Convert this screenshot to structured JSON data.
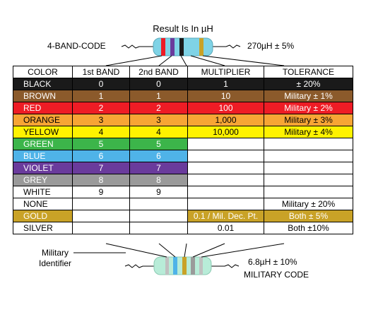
{
  "title": "Result Is In µH",
  "top_code_label": "4-BAND-CODE",
  "top_result": "270µH  ±  5%",
  "military_identifier": [
    "Military",
    "Identifier"
  ],
  "military_result": "6.8µH  ±  10%",
  "military_code_label": "MILITARY CODE",
  "headers": [
    "COLOR",
    "1st BAND",
    "2nd BAND",
    "MULTIPLIER",
    "TOLERANCE"
  ],
  "rows": [
    {
      "name": "BLACK",
      "band1": "0",
      "band2": "0",
      "mult": "1",
      "tol": "±  20%",
      "color": "#1a1a1a",
      "text": "#ffffff"
    },
    {
      "name": "BROWN",
      "band1": "1",
      "band2": "1",
      "mult": "10",
      "tol": "Military  ±  1%",
      "color": "#8b5a2b",
      "text": "#ffffff"
    },
    {
      "name": "RED",
      "band1": "2",
      "band2": "2",
      "mult": "100",
      "tol": "Military  ±  2%",
      "color": "#ee1c25",
      "text": "#ffffff"
    },
    {
      "name": "ORANGE",
      "band1": "3",
      "band2": "3",
      "mult": "1,000",
      "tol": "Military  ±  3%",
      "color": "#f7a535",
      "text": "#000000"
    },
    {
      "name": "YELLOW",
      "band1": "4",
      "band2": "4",
      "mult": "10,000",
      "tol": "Military  ±  4%",
      "color": "#fff200",
      "text": "#000000"
    },
    {
      "name": "GREEN",
      "band1": "5",
      "band2": "5",
      "mult": "",
      "tol": "",
      "color": "#3cb54a",
      "text": "#ffffff"
    },
    {
      "name": "BLUE",
      "band1": "6",
      "band2": "6",
      "mult": "",
      "tol": "",
      "color": "#4fb3e8",
      "text": "#ffffff"
    },
    {
      "name": "VIOLET",
      "band1": "7",
      "band2": "7",
      "mult": "",
      "tol": "",
      "color": "#6a3b9c",
      "text": "#ffffff"
    },
    {
      "name": "GREY",
      "band1": "8",
      "band2": "8",
      "mult": "",
      "tol": "",
      "color": "#9a9a9a",
      "text": "#ffffff"
    },
    {
      "name": "WHITE",
      "band1": "9",
      "band2": "9",
      "mult": "",
      "tol": "",
      "color": "#ffffff",
      "text": "#000000"
    },
    {
      "name": "NONE",
      "band1": "",
      "band2": "",
      "mult": "",
      "tol": "Military  ±  20%",
      "color": "#ffffff",
      "text": "#000000"
    },
    {
      "name": "GOLD",
      "band1": "",
      "band2": "",
      "mult": "0.1 / Mil. Dec. Pt.",
      "tol": "Both  ±  5%",
      "color": "#c9a227",
      "text": "#ffffff"
    },
    {
      "name": "SILVER",
      "band1": "",
      "band2": "",
      "mult": "0.01",
      "tol": "Both  ±10%",
      "color": "#ffffff",
      "text": "#000000"
    }
  ],
  "colors": {
    "resistor_body": "#7fd3e6",
    "resistor_body_military": "#b8ecd8",
    "lead": "#000000"
  },
  "icons": {
    "top_resistor": "four-band-resistor-icon",
    "bottom_resistor": "military-resistor-icon"
  }
}
